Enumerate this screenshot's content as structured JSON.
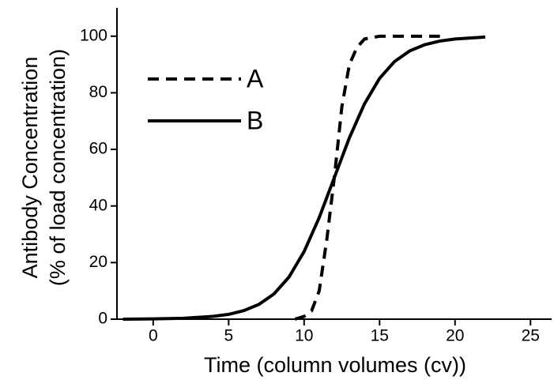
{
  "chart_data": {
    "type": "line",
    "xlabel": "Time (column volumes (cv))",
    "ylabel": [
      "Antibody Concentration",
      "(% of load concentration)"
    ],
    "xlim": [
      -2.4,
      26.4
    ],
    "ylim": [
      0,
      110
    ],
    "xticks": [
      0,
      5,
      10,
      15,
      20,
      25
    ],
    "yticks": [
      0,
      20,
      40,
      60,
      80,
      100
    ],
    "legend": "upper left",
    "series": [
      {
        "name": "A",
        "color": "#000000",
        "dash": true,
        "x": [
          9.4,
          10,
          10.5,
          11,
          11.5,
          12,
          12.5,
          13,
          13.5,
          14,
          15,
          19
        ],
        "values": [
          0,
          1,
          3,
          10,
          28,
          50,
          75,
          90,
          96,
          99,
          100,
          100
        ]
      },
      {
        "name": "B",
        "color": "#000000",
        "dash": false,
        "x": [
          -2,
          0,
          2,
          4,
          5,
          6,
          7,
          8,
          9,
          10,
          11,
          12,
          13,
          14,
          15,
          16,
          17,
          18,
          19,
          20,
          22
        ],
        "values": [
          0,
          0.1,
          0.3,
          1.0,
          1.7,
          3.0,
          5.2,
          8.9,
          14.9,
          23.9,
          35.9,
          50,
          64.1,
          76.1,
          85.1,
          91.1,
          94.8,
          97.0,
          98.3,
          99.0,
          99.7
        ]
      }
    ]
  }
}
